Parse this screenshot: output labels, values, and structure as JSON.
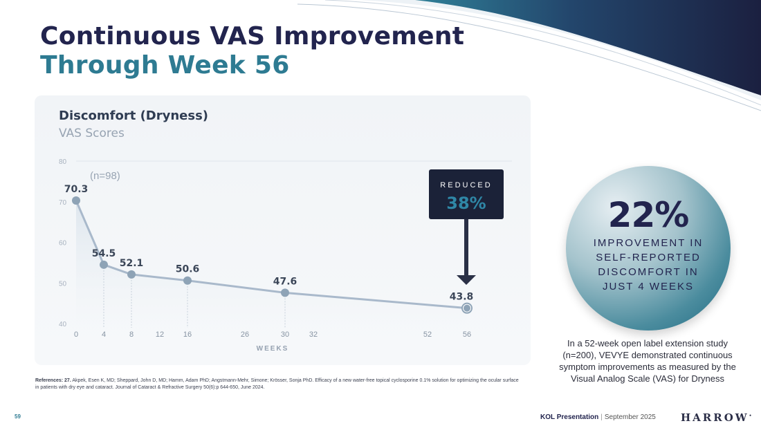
{
  "slide": {
    "title_line1": "Continuous VAS Improvement",
    "title_line2": "Through Week 56",
    "page_number": "59",
    "footer_label": "KOL Presentation",
    "footer_date": "September 2025",
    "logo": "HARROW"
  },
  "chart_data": {
    "type": "line",
    "title": "Discomfort (Dryness)",
    "subtitle": "VAS Scores",
    "n_label": "(n=98)",
    "xlabel": "WEEKS",
    "ylabel": "",
    "x_ticks": [
      0,
      4,
      8,
      12,
      16,
      26,
      30,
      32,
      52,
      56
    ],
    "y_ticks": [
      40,
      50,
      60,
      70,
      80
    ],
    "ylim": [
      40,
      80
    ],
    "series": [
      {
        "name": "VAS Score",
        "x": [
          0,
          4,
          8,
          16,
          30,
          56
        ],
        "values": [
          70.3,
          54.5,
          52.1,
          50.6,
          47.6,
          43.8
        ],
        "labels": [
          "70.3",
          "54.5",
          "52.1",
          "50.6",
          "47.6",
          "43.8"
        ]
      }
    ],
    "callout": {
      "label": "REDUCED",
      "value": "38%"
    },
    "colors": {
      "line": "#a9b9cb",
      "marker": "#8ea3b6",
      "area_top": "#dbe4ec",
      "callout_bg": "#1b2238",
      "callout_value": "#2f87a6"
    }
  },
  "highlight": {
    "value": "22%",
    "lines": [
      "IMPROVEMENT IN",
      "SELF-REPORTED",
      "DISCOMFORT IN",
      "JUST 4 WEEKS"
    ]
  },
  "note": "In a 52-week open label extension study (n=200), VEVYE demonstrated continuous symptom improvements as measured by the Visual Analog Scale (VAS) for Dryness",
  "references": {
    "label": "References: 27.",
    "text": "Akpek, Esen K, MD; Sheppard, John D, MD; Hamm, Adam PhD; Angstmann-Mehr, Simone; Krösser, Sonja PhD. Efficacy of a new water-free topical cyclosporine 0.1% solution for optimizing the ocular surface in patients with dry eye and cataract. Journal of Cataract & Refractive Surgery 50(6):p 644-650, June 2024."
  }
}
